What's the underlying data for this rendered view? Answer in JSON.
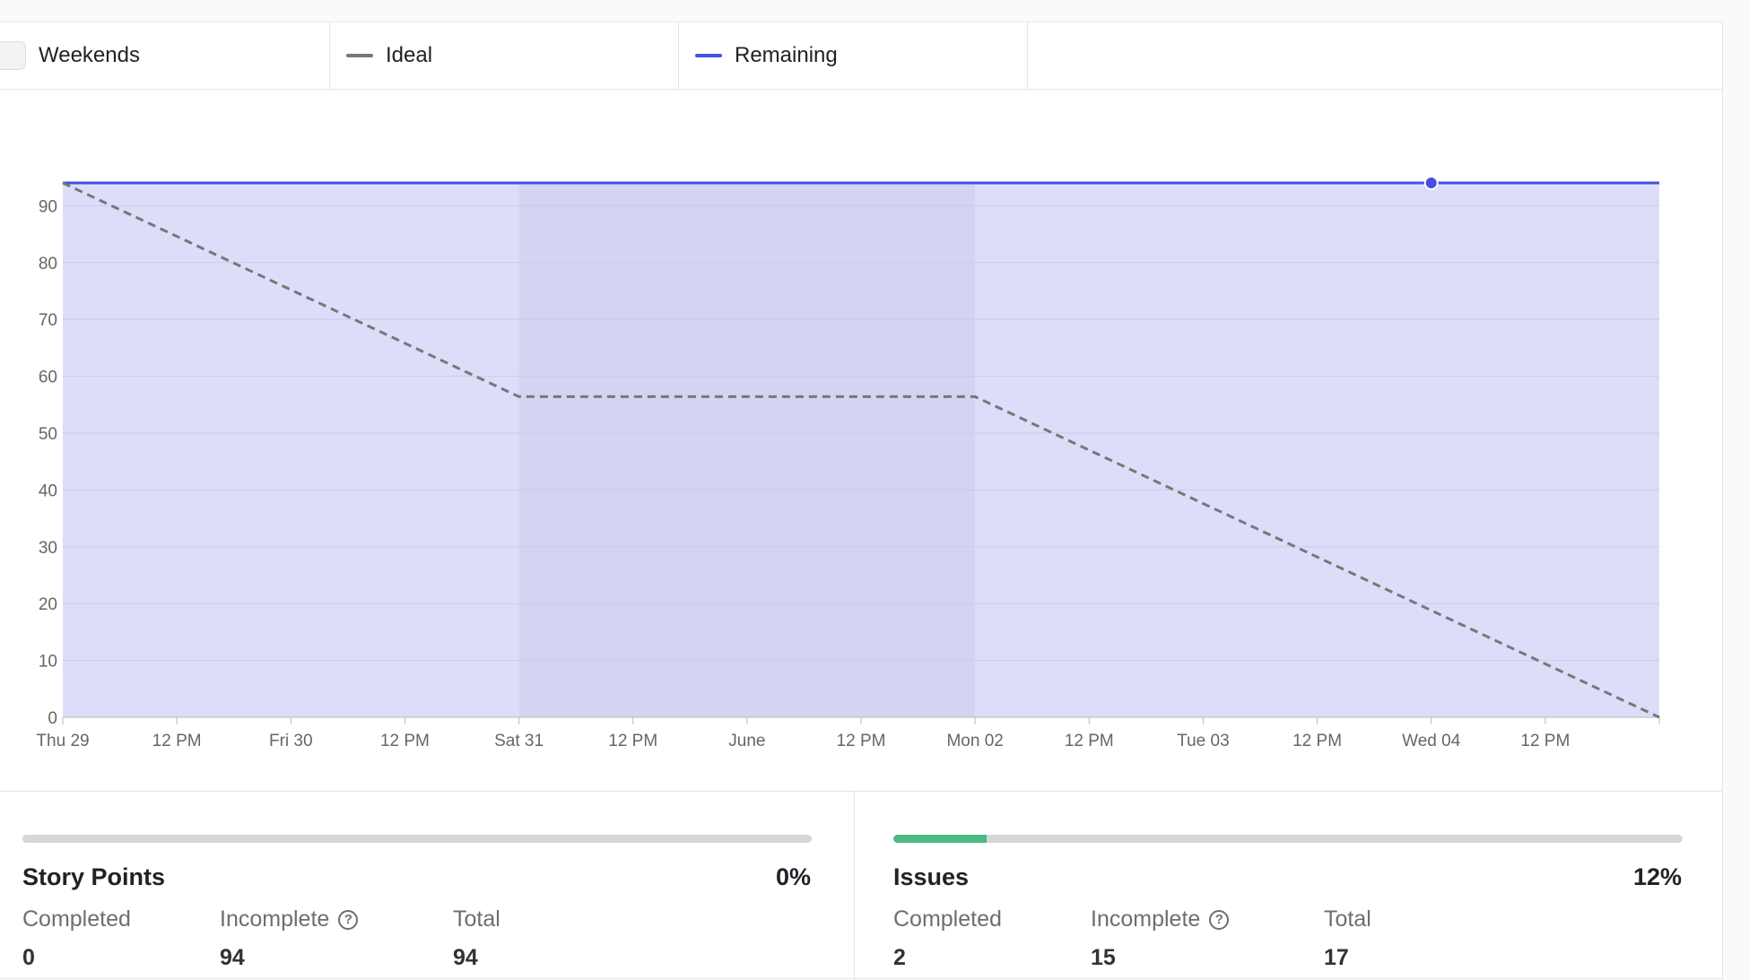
{
  "legend": {
    "weekends_label": "Weekends",
    "ideal_label": "Ideal",
    "remaining_label": "Remaining"
  },
  "colors": {
    "remaining": "#4450e0",
    "remaining_fill": "#dcdef9",
    "weekend_fill": "#d2d4f1",
    "ideal": "#777777",
    "grid": "#c9cbe8",
    "progress_done": "#4cba84"
  },
  "chart_data": {
    "type": "area",
    "x_ticks": [
      "Thu 29",
      "12 PM",
      "Fri 30",
      "12 PM",
      "Sat 31",
      "12 PM",
      "June",
      "12 PM",
      "Mon 02",
      "12 PM",
      "Tue 03",
      "12 PM",
      "Wed 04",
      "12 PM"
    ],
    "y_ticks": [
      0,
      10,
      20,
      30,
      40,
      50,
      60,
      70,
      80,
      90
    ],
    "ylim": [
      0,
      94
    ],
    "xlim_days": [
      0,
      7
    ],
    "weekend_span_days": [
      2,
      4
    ],
    "grid": true,
    "series": [
      {
        "name": "Ideal",
        "style": "dashed",
        "x_days": [
          0,
          2,
          4,
          7
        ],
        "values": [
          94,
          56.4,
          56.4,
          0
        ]
      },
      {
        "name": "Remaining",
        "style": "solid-filled",
        "x_days": [
          0,
          6,
          7
        ],
        "values": [
          94,
          94,
          94
        ],
        "marker_at_day": 6
      }
    ]
  },
  "story_points": {
    "title": "Story Points",
    "percent": "0%",
    "progress_fraction": 0.0,
    "completed_label": "Completed",
    "completed_value": "0",
    "incomplete_label": "Incomplete",
    "incomplete_value": "94",
    "total_label": "Total",
    "total_value": "94"
  },
  "issues": {
    "title": "Issues",
    "percent": "12%",
    "progress_fraction": 0.118,
    "completed_label": "Completed",
    "completed_value": "2",
    "incomplete_label": "Incomplete",
    "incomplete_value": "15",
    "total_label": "Total",
    "total_value": "17"
  },
  "help_glyph": "?"
}
